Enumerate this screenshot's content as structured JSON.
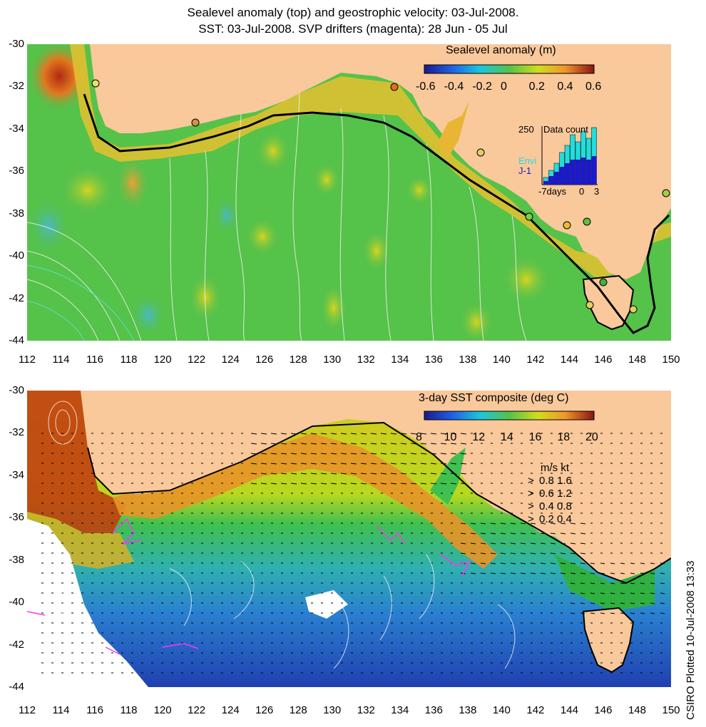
{
  "title_line1": "Sealevel anomaly (top) and geostrophic velocity: 03-Jul-2008.",
  "title_line2": "SST: 03-Jul-2008. SVP drifters (magenta): 28 Jun - 05 Jul",
  "top_panel": {
    "colorbar_title": "Sealevel anomaly (m)",
    "colorbar_ticks": [
      "-0.6",
      "-0.4",
      "-0.2",
      "0",
      "0.2",
      "0.4",
      "0.6"
    ],
    "inset": {
      "top_label": "250",
      "title": "Data count",
      "series": [
        "Envi",
        "J-1"
      ],
      "x_ticks": [
        "-7days",
        "0",
        "3"
      ],
      "series_colors": [
        "#22dddd",
        "#1a1acc"
      ]
    }
  },
  "bottom_panel": {
    "colorbar_title": "3-day SST composite (deg C)",
    "colorbar_ticks": [
      "8",
      "10",
      "12",
      "14",
      "16",
      "18",
      "20"
    ],
    "velocity_legend": {
      "header": "m/s  kt",
      "rows": [
        {
          "ms": "0.8",
          "kt": "1.6"
        },
        {
          "ms": "0.6",
          "kt": "1.2"
        },
        {
          "ms": "0.4",
          "kt": "0.8"
        },
        {
          "ms": "0.2",
          "kt": "0.4"
        }
      ]
    }
  },
  "y_ticks": [
    "-30",
    "-32",
    "-34",
    "-36",
    "-38",
    "-40",
    "-42",
    "-44"
  ],
  "x_ticks": [
    "112",
    "114",
    "116",
    "118",
    "120",
    "122",
    "124",
    "126",
    "128",
    "130",
    "132",
    "134",
    "136",
    "138",
    "140",
    "142",
    "144",
    "146",
    "148",
    "150"
  ],
  "side_text": "CSIRO Plotted 10-Jul-2008 13:33",
  "colors": {
    "land": "#f9c89b",
    "drifter": "#ff33ff"
  }
}
